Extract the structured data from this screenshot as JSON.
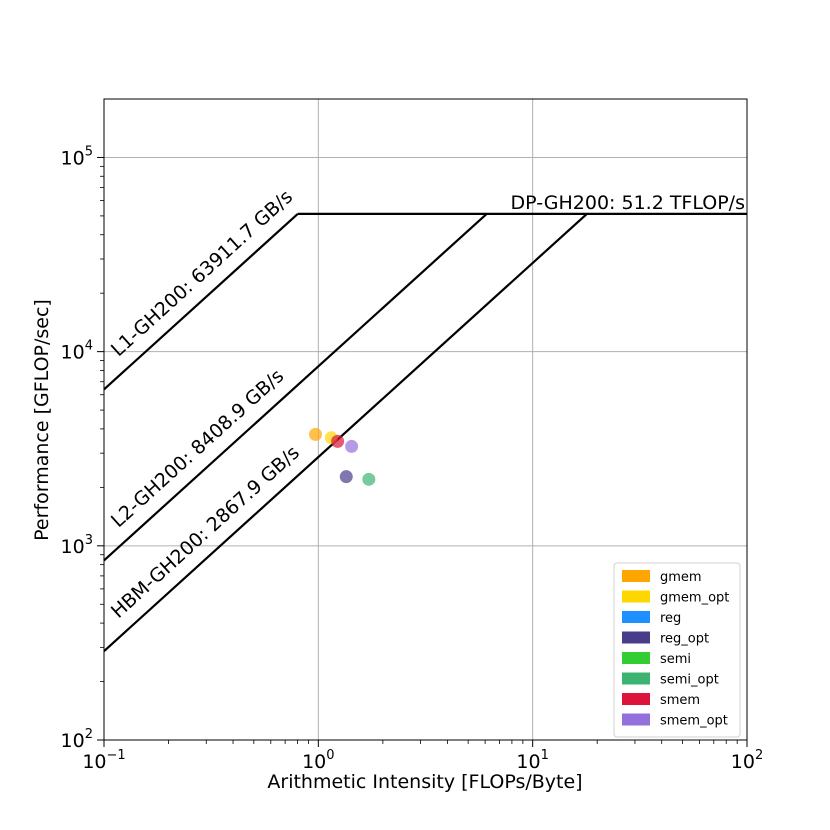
{
  "chart_data": {
    "type": "scatter",
    "xscale": "log",
    "yscale": "log",
    "xlim": [
      0.1,
      100
    ],
    "ylim": [
      100,
      200000
    ],
    "xlabel": "Arithmetic Intensity [FLOPs/Byte]",
    "ylabel": "Performance [GFLOP/sec]",
    "grid": true,
    "x_ticks": [
      {
        "value": 0.1,
        "base": "10",
        "exp": "−1"
      },
      {
        "value": 1,
        "base": "10",
        "exp": "0"
      },
      {
        "value": 10,
        "base": "10",
        "exp": "1"
      },
      {
        "value": 100,
        "base": "10",
        "exp": "2"
      }
    ],
    "y_ticks": [
      {
        "value": 100,
        "base": "10",
        "exp": "2"
      },
      {
        "value": 1000,
        "base": "10",
        "exp": "3"
      },
      {
        "value": 10000,
        "base": "10",
        "exp": "4"
      },
      {
        "value": 100000,
        "base": "10",
        "exp": "5"
      }
    ],
    "rooflines": [
      {
        "label": "L1-GH200: 63911.7 GB/s",
        "bandwidth": 63911.7,
        "x_end": 0.8
      },
      {
        "label": "L2-GH200: 8408.9 GB/s",
        "bandwidth": 8408.9,
        "x_end": 6.1
      },
      {
        "label": "HBM-GH200: 2867.9 GB/s",
        "bandwidth": 2867.9,
        "x_end": 17.9
      }
    ],
    "compute_roof": {
      "label": "DP-GH200: 51.2 TFLOP/s",
      "peak_gflops": 51200,
      "x_start": 0.8
    },
    "legend_position": "lower-right",
    "series": [
      {
        "name": "gmem",
        "color": "#FFA500",
        "points": [
          [
            0.97,
            3750
          ]
        ]
      },
      {
        "name": "gmem_opt",
        "color": "#FFD700",
        "points": [
          [
            1.15,
            3600
          ]
        ]
      },
      {
        "name": "reg",
        "color": "#1E90FF",
        "points": []
      },
      {
        "name": "reg_opt",
        "color": "#483D8B",
        "points": [
          [
            1.35,
            2270
          ]
        ]
      },
      {
        "name": "semi",
        "color": "#32CD32",
        "points": []
      },
      {
        "name": "semi_opt",
        "color": "#3CB371",
        "points": [
          [
            1.72,
            2200
          ]
        ]
      },
      {
        "name": "smem",
        "color": "#DC143C",
        "points": [
          [
            1.23,
            3450
          ]
        ]
      },
      {
        "name": "smem_opt",
        "color": "#9370DB",
        "points": [
          [
            1.43,
            3250
          ]
        ]
      }
    ]
  }
}
